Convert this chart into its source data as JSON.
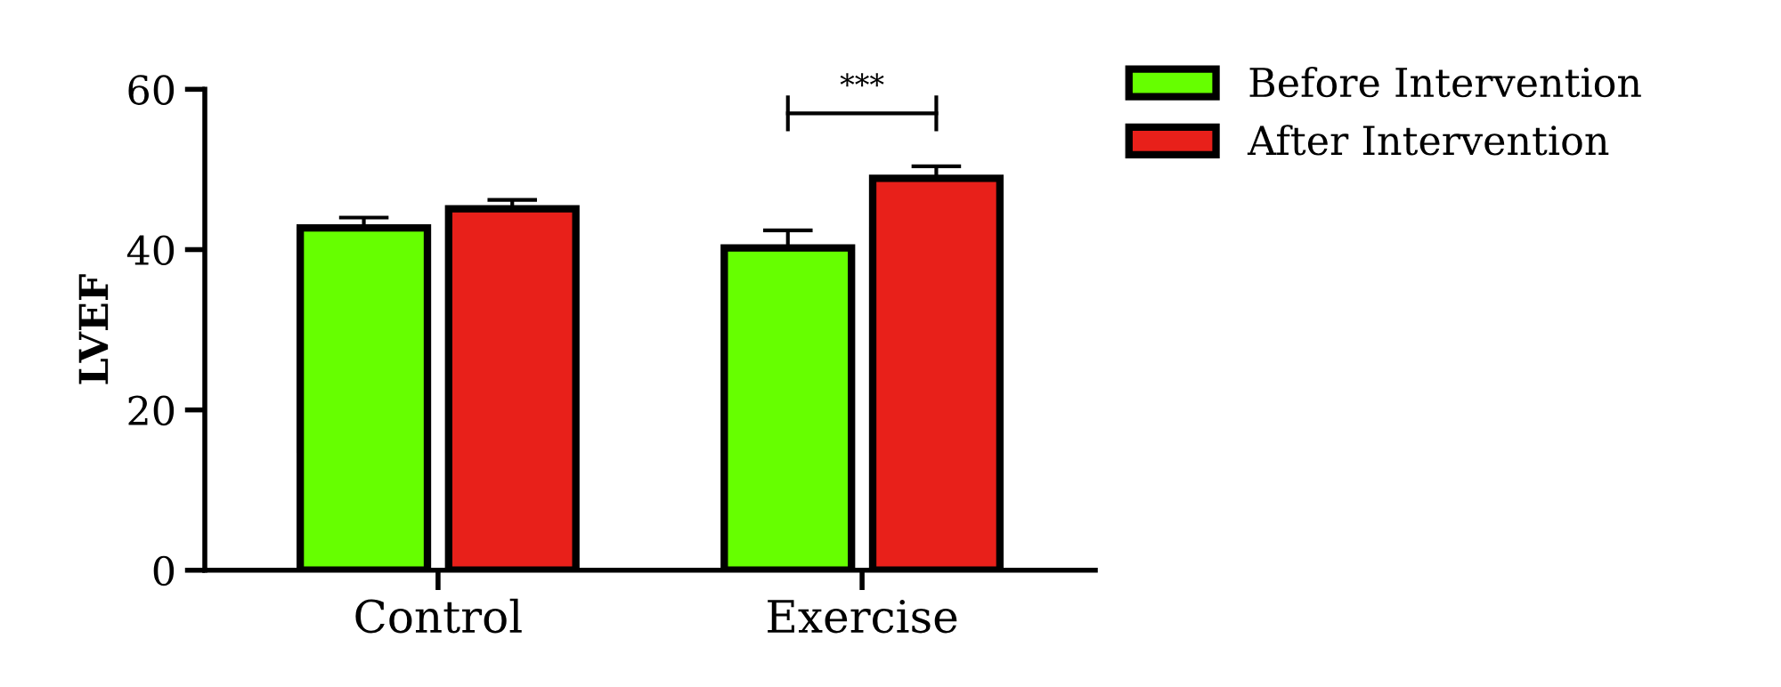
{
  "chart_data": {
    "type": "bar",
    "ylabel": "LVEF",
    "categories": [
      "Control",
      "Exercise"
    ],
    "series": [
      {
        "name": "Before Intervention",
        "color": "#66ff00",
        "values": [
          42.7,
          40.2
        ],
        "errors": [
          1.3,
          2.2
        ]
      },
      {
        "name": "After Intervention",
        "color": "#e8201a",
        "values": [
          45.1,
          48.9
        ],
        "errors": [
          1.1,
          1.5
        ]
      }
    ],
    "ylim": [
      0,
      60
    ],
    "yticks": [
      0,
      20,
      40,
      60
    ],
    "grid": false,
    "legend": "top right",
    "annotations": [
      "***"
    ]
  }
}
